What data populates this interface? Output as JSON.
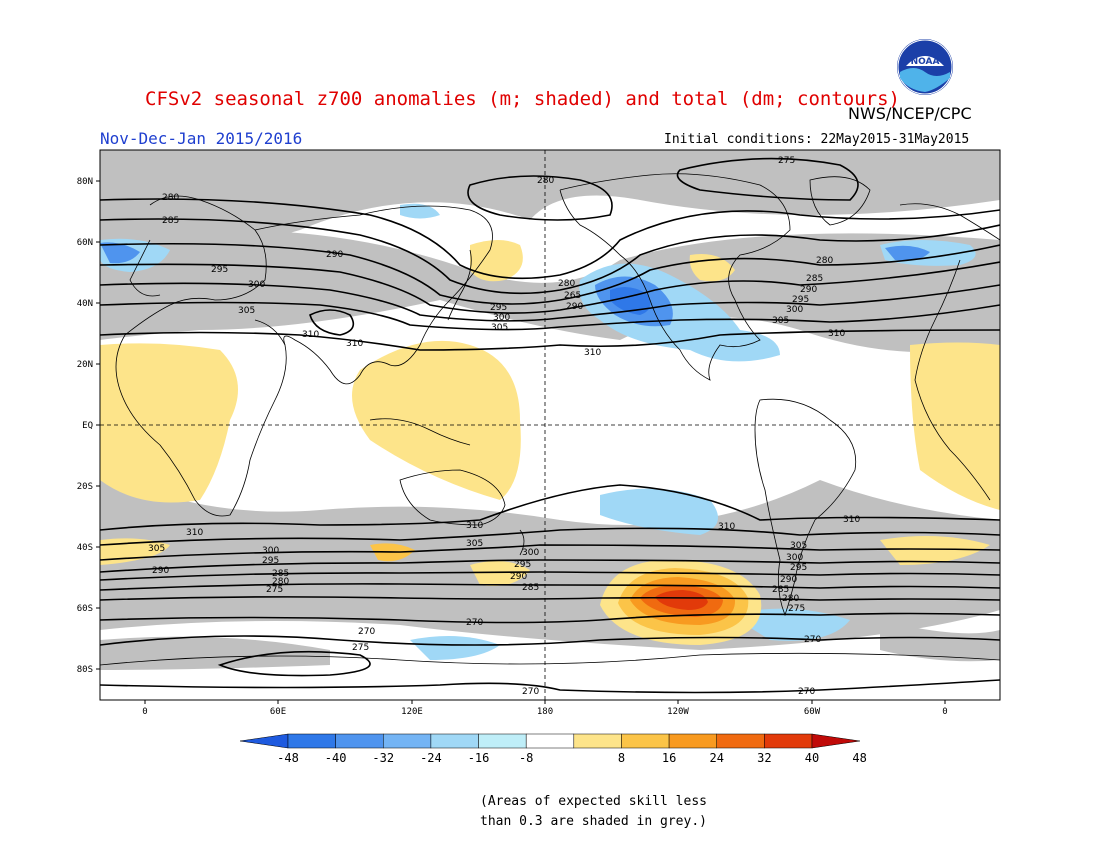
{
  "header": {
    "title": "CFSv2 seasonal z700 anomalies (m; shaded) and total (dm; contours)",
    "agency": "NWS/NCEP/CPC",
    "logo_text": "NOAA",
    "period": "Nov-Dec-Jan 2015/2016",
    "initial_conditions": "Initial conditions: 22May2015-31May2015"
  },
  "map": {
    "lat_labels": [
      "80N",
      "60N",
      "40N",
      "20N",
      "EQ",
      "20S",
      "40S",
      "60S",
      "80S"
    ],
    "lon_labels": [
      "0",
      "60E",
      "120E",
      "180",
      "120W",
      "60W",
      "0"
    ],
    "contour_labels": [
      "280",
      "285",
      "290",
      "295",
      "300",
      "305",
      "310",
      "265",
      "270",
      "275"
    ]
  },
  "colorbar": {
    "ticks": [
      "-48",
      "-40",
      "-32",
      "-24",
      "-16",
      "-8",
      "8",
      "16",
      "24",
      "32",
      "40",
      "48"
    ],
    "colors": [
      "#1e5adf",
      "#2f78e8",
      "#4f94ee",
      "#74b4f4",
      "#a0d8f6",
      "#bfeef8",
      "#ffffff",
      "#fde48a",
      "#fbc448",
      "#f89a20",
      "#f06a10",
      "#e23a0a",
      "#c00a08"
    ]
  },
  "footnote": {
    "line1": "(Areas of expected skill less",
    "line2": "than 0.3 are shaded in grey.)"
  },
  "colors": {
    "title": "#e00000",
    "period": "#1f3fcf",
    "grey_skill": "#c0c0c0"
  }
}
